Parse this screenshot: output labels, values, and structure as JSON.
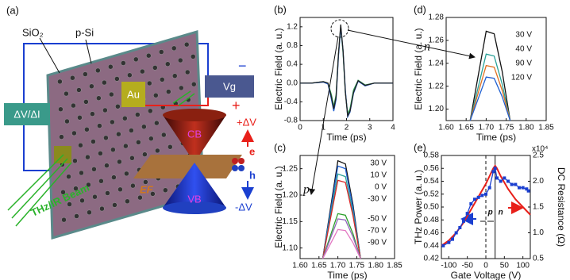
{
  "diagram": {
    "panel_label": "(a)",
    "labels": {
      "sio2": "SiO₂",
      "psi": "p-Si",
      "au": "Au",
      "vg": "Vg",
      "dv_di": "ΔV/ΔI",
      "beam": "THz/IR Beam",
      "cb": "CB",
      "vb": "VB",
      "ef": "EF",
      "plus_dv": "+ΔV",
      "minus_dv": "-ΔV",
      "e": "e",
      "h": "h",
      "minus": "−",
      "plus": "+"
    }
  },
  "chart_data": [
    {
      "type": "line",
      "panel_label": "(b)",
      "xlabel": "Time (ps)",
      "ylabel": "Electric Field (a. u.)",
      "xlim": [
        0,
        4
      ],
      "xticks": [
        0,
        1,
        2,
        3,
        4
      ],
      "ylim": [
        -0.8,
        1.4
      ],
      "yticks": [
        -0.8,
        -0.4,
        {
          "value": 0,
          "label": "0.0"
        },
        0.4,
        0.8,
        1.2
      ],
      "x": [
        0,
        0.5,
        1,
        1.2,
        1.35,
        1.45,
        1.55,
        1.65,
        1.75,
        1.85,
        1.95,
        2.05,
        2.15,
        2.3,
        2.5,
        2.8,
        3.2,
        4
      ],
      "series": [
        {
          "color": "#2aa05a",
          "values": [
            0,
            0,
            0.03,
            0,
            -0.25,
            -0.5,
            -0.25,
            0.6,
            1.2,
            0.65,
            -0.2,
            -0.65,
            -0.55,
            -0.15,
            0.06,
            -0.04,
            0,
            0
          ]
        },
        {
          "color": "#1f5fd0",
          "values": [
            0,
            0,
            0.02,
            -0.02,
            -0.35,
            -0.6,
            -0.35,
            0.55,
            1.2,
            0.7,
            -0.15,
            -0.72,
            -0.62,
            -0.22,
            0.04,
            -0.06,
            0,
            0
          ]
        },
        {
          "color": "#222222",
          "values": [
            0,
            0,
            0.03,
            0,
            -0.3,
            -0.55,
            -0.3,
            0.6,
            1.25,
            0.7,
            -0.2,
            -0.7,
            -0.6,
            -0.2,
            0.05,
            -0.05,
            0,
            0
          ]
        }
      ]
    },
    {
      "type": "line",
      "panel_label": "(c)",
      "xlabel": "Time (ps)",
      "ylabel": "Electric Field (a. u.)",
      "annotation": "p",
      "xlim": [
        1.6,
        1.85
      ],
      "xticks": [
        {
          "value": 1.6,
          "label": "1.60"
        },
        1.65,
        {
          "value": 1.7,
          "label": "1.70"
        },
        1.75,
        {
          "value": 1.8,
          "label": "1.80"
        },
        1.85
      ],
      "ylim": [
        1.08,
        1.275
      ],
      "yticks": [
        {
          "value": 1.1,
          "label": "1.10"
        },
        1.15,
        {
          "value": 1.2,
          "label": "1.20"
        },
        1.25
      ],
      "x": [
        1.66,
        1.69,
        1.7,
        1.72,
        1.74,
        1.76
      ],
      "series": [
        {
          "name": "30 V",
          "color": "#111111",
          "values": [
            1.08,
            1.219,
            1.265,
            1.259,
            1.182,
            1.08
          ]
        },
        {
          "name": "10 V",
          "color": "#1f5fd0",
          "values": [
            1.08,
            1.211,
            1.255,
            1.25,
            1.176,
            1.08
          ]
        },
        {
          "name": "0 V",
          "color": "#2aa198",
          "values": [
            1.08,
            1.2,
            1.24,
            1.235,
            1.168,
            1.08
          ]
        },
        {
          "name": "-30 V",
          "color": "#d62728",
          "values": [
            1.08,
            1.191,
            1.228,
            1.224,
            1.161,
            1.08
          ]
        },
        {
          "name": "-50 V",
          "color": "#2ca02c",
          "values": [
            1.08,
            1.144,
            1.165,
            1.162,
            1.127,
            1.08
          ]
        },
        {
          "name": "-70 V",
          "color": "#9467bd",
          "values": [
            1.08,
            1.136,
            1.155,
            1.153,
            1.121,
            1.08
          ]
        },
        {
          "name": "-90 V",
          "color": "#e377c2",
          "values": [
            1.08,
            1.121,
            1.135,
            1.133,
            1.11,
            1.08
          ]
        }
      ]
    },
    {
      "type": "line",
      "panel_label": "(d)",
      "xlabel": "Time (ps)",
      "ylabel": "Electric Field (a. u.)",
      "annotation": "n",
      "xlim": [
        1.6,
        1.85
      ],
      "xticks": [
        {
          "value": 1.6,
          "label": "1.60"
        },
        1.65,
        {
          "value": 1.7,
          "label": "1.70"
        },
        1.75,
        {
          "value": 1.8,
          "label": "1.80"
        },
        1.85
      ],
      "ylim": [
        1.19,
        1.28
      ],
      "yticks": [
        {
          "value": 1.2,
          "label": "1.20"
        },
        1.22,
        1.24,
        1.26,
        1.28
      ],
      "x": [
        1.66,
        1.69,
        1.7,
        1.72,
        1.74,
        1.76
      ],
      "series": [
        {
          "name": "30 V",
          "color": "#111111",
          "values": [
            1.19,
            1.2485,
            1.268,
            1.2657,
            1.2329,
            1.19
          ]
        },
        {
          "name": "40 V",
          "color": "#2aa198",
          "values": [
            1.19,
            1.2335,
            1.248,
            1.2463,
            1.2219,
            1.19
          ]
        },
        {
          "name": "90 V",
          "color": "#e07020",
          "values": [
            1.19,
            1.226,
            1.238,
            1.2366,
            1.2164,
            1.19
          ]
        },
        {
          "name": "120 V",
          "color": "#1f5fd0",
          "values": [
            1.19,
            1.2185,
            1.228,
            1.2269,
            1.2109,
            1.19
          ]
        }
      ]
    },
    {
      "type": "line",
      "panel_label": "(e)",
      "xlabel": "Gate Voltage (V)",
      "ylabel": "THz Power (a. u.)",
      "y2label": "DC Resistance (Ω)",
      "y2_multiplier": "x10⁴",
      "annotations": [
        "p",
        "n"
      ],
      "xlim": [
        -120,
        120
      ],
      "xticks": [
        -100,
        -50,
        0,
        50,
        100
      ],
      "ylim": [
        0.42,
        0.58
      ],
      "yticks": [
        0.42,
        0.44,
        0.46,
        0.48,
        {
          "value": 0.5,
          "label": "0.50"
        },
        0.52,
        0.54,
        0.56,
        0.58
      ],
      "y2lim": [
        0.5,
        2.5
      ],
      "y2ticks": [
        0.5,
        {
          "value": 1,
          "label": "1.0"
        },
        1.5,
        {
          "value": 2,
          "label": "2.0"
        },
        2.5
      ],
      "vlines": [
        {
          "value": 0,
          "style": "dashed"
        },
        {
          "value": 25,
          "style": "solid"
        }
      ],
      "series": [
        {
          "color": "#e8201a",
          "axis": "y2",
          "x": [
            -120,
            -100,
            -80,
            -60,
            -40,
            -20,
            0,
            10,
            20,
            25,
            30,
            40,
            60,
            80,
            100,
            120
          ],
          "values": [
            0.75,
            0.85,
            1.0,
            1.2,
            1.45,
            1.7,
            1.95,
            2.1,
            2.25,
            2.3,
            2.25,
            2.1,
            1.85,
            1.65,
            1.5,
            1.35
          ]
        },
        {
          "color": "#1a3fd0",
          "marker": "square",
          "x": [
            -115,
            -100,
            -90,
            -80,
            -70,
            -60,
            -50,
            -40,
            -30,
            -20,
            -10,
            0,
            10,
            20,
            25,
            30,
            40,
            50,
            60,
            70,
            80,
            90,
            100,
            110,
            115
          ],
          "values": [
            0.44,
            0.445,
            0.45,
            0.46,
            0.468,
            0.478,
            0.49,
            0.505,
            0.512,
            0.515,
            0.518,
            0.52,
            0.53,
            0.555,
            0.56,
            0.545,
            0.54,
            0.545,
            0.54,
            0.535,
            0.535,
            0.53,
            0.53,
            0.528,
            0.525
          ]
        }
      ]
    }
  ]
}
